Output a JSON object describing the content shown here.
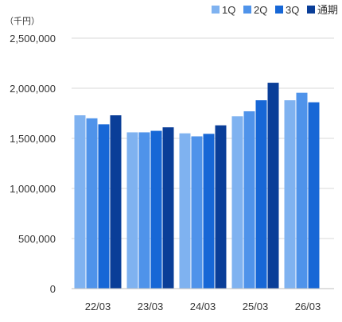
{
  "chart_data": {
    "type": "bar",
    "unit_label": "（千円）",
    "categories": [
      "22/03",
      "23/03",
      "24/03",
      "25/03",
      "26/03"
    ],
    "series": [
      {
        "name": "1Q",
        "color": "#7fb2f0",
        "values": [
          1730000,
          1560000,
          1550000,
          1720000,
          1880000
        ]
      },
      {
        "name": "2Q",
        "color": "#4f93ea",
        "values": [
          1700000,
          1560000,
          1520000,
          1770000,
          1955000
        ]
      },
      {
        "name": "3Q",
        "color": "#1767d6",
        "values": [
          1640000,
          1575000,
          1545000,
          1880000,
          1860000
        ]
      },
      {
        "name": "通期",
        "color": "#0a3e98",
        "values": [
          1730000,
          1610000,
          1630000,
          2055000,
          null
        ]
      }
    ],
    "ylim": [
      0,
      2500000
    ],
    "yticks": [
      0,
      500000,
      1000000,
      1500000,
      2000000,
      2500000
    ],
    "ytick_labels": [
      "0",
      "500,000",
      "1,000,000",
      "1,500,000",
      "2,000,000",
      "2,500,000"
    ],
    "grid": true,
    "legend_position": "top-right"
  }
}
